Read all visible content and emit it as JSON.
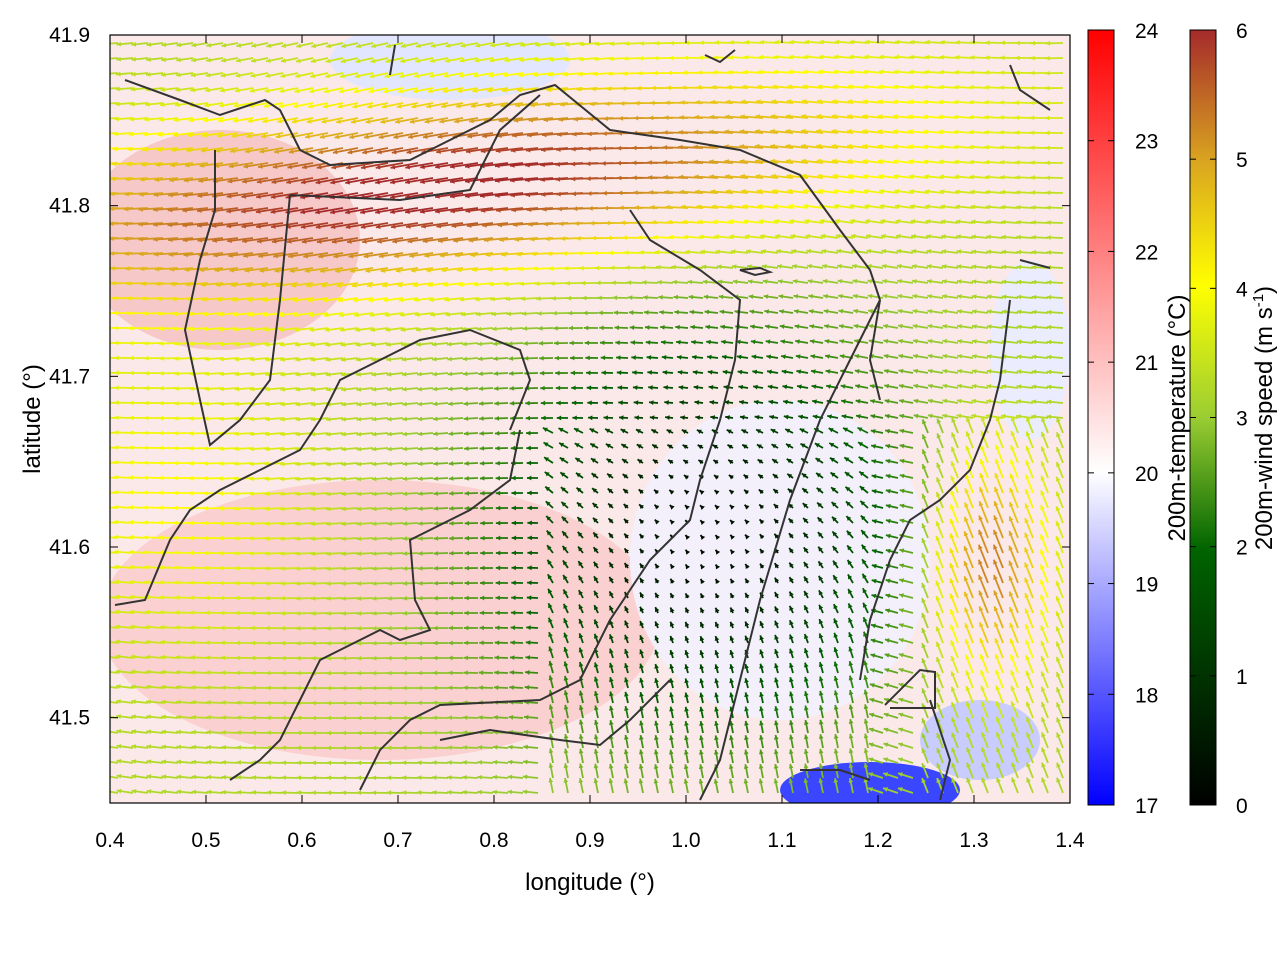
{
  "chart_data": {
    "type": "vector-field",
    "xlabel": "longitude (°)",
    "ylabel": "latitude (°)",
    "xlim": [
      0.4,
      1.4
    ],
    "ylim": [
      41.45,
      41.9
    ],
    "x_ticks": [
      "0.4",
      "0.5",
      "0.6",
      "0.7",
      "0.8",
      "0.9",
      "1.0",
      "1.1",
      "1.2",
      "1.3",
      "1.4"
    ],
    "y_ticks": [
      "41.5",
      "41.6",
      "41.7",
      "41.8",
      "41.9"
    ],
    "x_tick_values": [
      0.4,
      0.5,
      0.6,
      0.7,
      0.8,
      0.9,
      1.0,
      1.1,
      1.2,
      1.3,
      1.4
    ],
    "y_tick_values": [
      41.5,
      41.6,
      41.7,
      41.8,
      41.9
    ],
    "temperature_colorbar": {
      "label": "200m-temperature (°C)",
      "range": [
        17,
        24
      ],
      "ticks": [
        "17",
        "18",
        "19",
        "20",
        "21",
        "22",
        "23",
        "24"
      ],
      "colors": [
        "#0000ff",
        "#ffffff",
        "#ff0000"
      ]
    },
    "wind_colorbar": {
      "label_main": "200m-wind speed (m s",
      "label_sup": "-1",
      "label_end": ")",
      "range": [
        0,
        6
      ],
      "ticks": [
        "0",
        "1",
        "2",
        "3",
        "4",
        "5",
        "6"
      ],
      "colors": [
        "#000000",
        "#006400",
        "#9acd32",
        "#ffff00",
        "#daa520",
        "#a52a2a"
      ]
    },
    "grid": false,
    "background_field": "temperature",
    "overlay": "wind vectors colored by speed"
  }
}
